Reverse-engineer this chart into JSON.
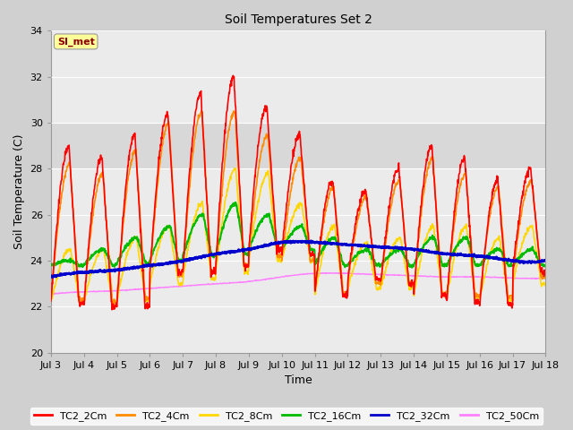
{
  "title": "Soil Temperatures Set 2",
  "xlabel": "Time",
  "ylabel": "Soil Temperature (C)",
  "ylim": [
    20,
    34
  ],
  "yticks": [
    20,
    22,
    24,
    26,
    28,
    30,
    32,
    34
  ],
  "x_labels": [
    "Jul 3",
    "Jul 4",
    "Jul 5",
    "Jul 6",
    "Jul 7",
    "Jul 8",
    "Jul 9",
    "Jul 10",
    "Jul 11",
    "Jul 12",
    "Jul 13",
    "Jul 14",
    "Jul 15",
    "Jul 16",
    "Jul 17",
    "Jul 18"
  ],
  "annotation_text": "SI_met",
  "annotation_color": "#8B0000",
  "annotation_bg": "#FFFF99",
  "fig_bg": "#D0D0D0",
  "plot_bg": "#EBEBEB",
  "shaded_band_lo": 28,
  "shaded_band_hi": 30,
  "shaded_band_color": "#D8D8D8",
  "grid_color": "#FFFFFF",
  "series_colors": {
    "TC2_2Cm": "#FF0000",
    "TC2_4Cm": "#FF8C00",
    "TC2_8Cm": "#FFD700",
    "TC2_16Cm": "#00BB00",
    "TC2_32Cm": "#0000CC",
    "TC2_50Cm": "#FF80FF"
  },
  "series_lw": {
    "TC2_2Cm": 1.2,
    "TC2_4Cm": 1.2,
    "TC2_8Cm": 1.2,
    "TC2_16Cm": 1.5,
    "TC2_32Cm": 2.0,
    "TC2_50Cm": 1.0
  }
}
